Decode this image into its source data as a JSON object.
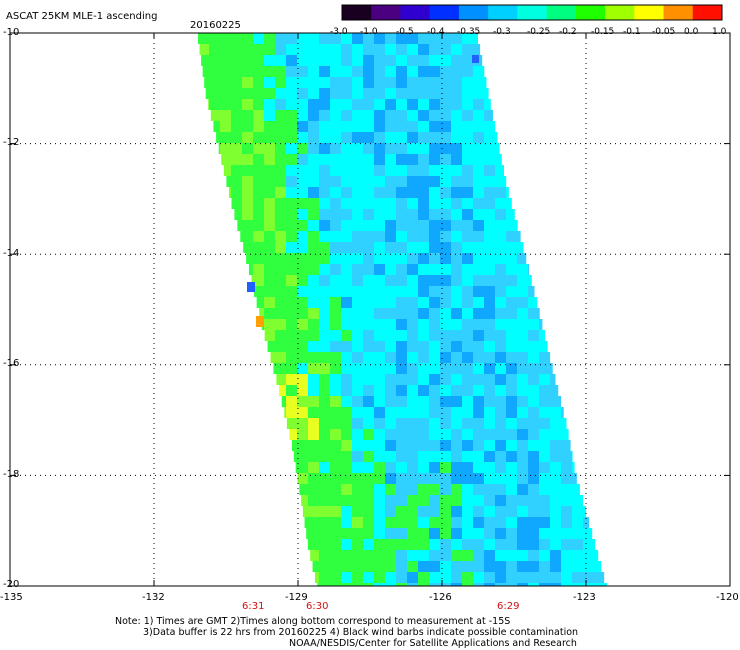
{
  "header": {
    "title": "ASCAT 25KM MLE-1 ascending",
    "date": "20160225"
  },
  "colorbar": {
    "labels": [
      "-3.0",
      "-1.0",
      "-0.5",
      "-0.4",
      "-0.35",
      "-0.3",
      "-0.25",
      "-0.2",
      "-0.15",
      "-0.1",
      "-0.05",
      "0.0",
      "1.0"
    ],
    "colors": [
      "#1a0020",
      "#4a0080",
      "#3000d0",
      "#0030ff",
      "#0090ff",
      "#00d0ff",
      "#00ffe0",
      "#00ff80",
      "#20ff00",
      "#a0ff00",
      "#ffff00",
      "#ff9000",
      "#ff1000"
    ]
  },
  "map": {
    "lat_labels": [
      "-10",
      "-12",
      "-14",
      "-16",
      "-18",
      "-20"
    ],
    "lon_labels": [
      "-135",
      "-132",
      "-129",
      "-126",
      "-123",
      "-120"
    ],
    "lat_range": [
      -20,
      -10
    ],
    "lon_range": [
      -135,
      -120
    ],
    "swath_colors": {
      "ocean_bg": "#ffffff",
      "cyan": "#00ffff",
      "light_blue": "#30d0ff",
      "blue": "#10a8ff",
      "green": "#30ff40",
      "light_green": "#80ff30",
      "yellow": "#e8ff20",
      "orange": "#ffa000",
      "deep_blue": "#2060ff"
    }
  },
  "times": {
    "t1": "6:31",
    "t2": "6:30",
    "t3": "6:29"
  },
  "footer": {
    "note1": "Note: 1) Times are GMT 2)Times along bottom correspond to measurement at -15S",
    "note2": "3)Data buffer is 22 hrs from 20160225 4) Black wind barbs indicate possible contamination",
    "credit": "NOAA/NESDIS/Center for Satellite Applications and Research"
  }
}
